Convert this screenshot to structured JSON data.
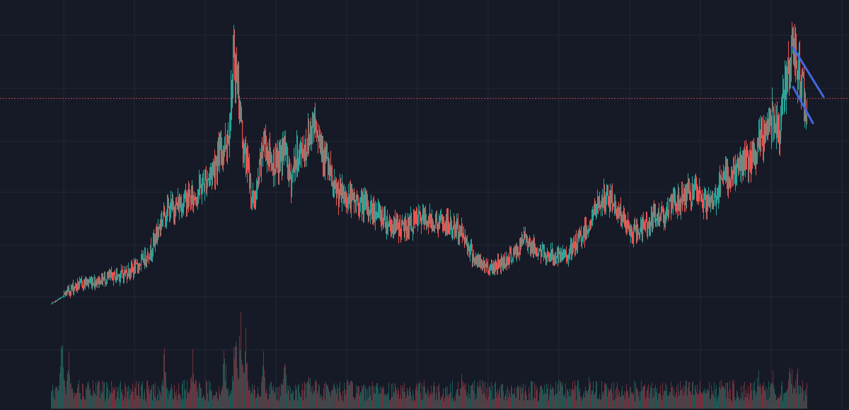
{
  "chart_data": {
    "type": "candlestick",
    "title": "",
    "xlabel": "",
    "ylabel": "",
    "grid": true,
    "y_scale": "linear",
    "ylim": [
      0,
      100
    ],
    "volume_panel": true,
    "reference_line": {
      "value": 76.5,
      "style": "dotted",
      "color": "#c0485a"
    },
    "trendlines": [
      {
        "name": "",
        "points": [
          [
            1049,
            92
          ],
          [
            1092,
            77
          ]
        ],
        "color": "#4169e1"
      },
      {
        "name": "",
        "points": [
          [
            1049,
            80
          ],
          [
            1077,
            69
          ]
        ],
        "color": "#4169e1"
      }
    ],
    "anchors": [
      [
        0,
        14
      ],
      [
        18,
        16.5
      ],
      [
        25,
        18
      ],
      [
        30,
        19
      ],
      [
        48,
        20.5
      ],
      [
        65,
        21
      ],
      [
        80,
        22
      ],
      [
        100,
        23
      ],
      [
        120,
        25
      ],
      [
        140,
        30
      ],
      [
        160,
        42
      ],
      [
        180,
        44
      ],
      [
        190,
        46
      ],
      [
        200,
        46
      ],
      [
        220,
        52
      ],
      [
        235,
        58
      ],
      [
        250,
        65
      ],
      [
        258,
        88
      ],
      [
        262,
        84
      ],
      [
        266,
        75
      ],
      [
        272,
        60
      ],
      [
        278,
        56
      ],
      [
        284,
        45
      ],
      [
        290,
        47
      ],
      [
        300,
        64
      ],
      [
        310,
        58
      ],
      [
        320,
        56
      ],
      [
        330,
        62
      ],
      [
        338,
        51
      ],
      [
        345,
        58
      ],
      [
        360,
        62
      ],
      [
        366,
        66
      ],
      [
        372,
        71
      ],
      [
        378,
        66
      ],
      [
        388,
        58
      ],
      [
        400,
        48
      ],
      [
        420,
        46
      ],
      [
        440,
        44
      ],
      [
        460,
        42
      ],
      [
        480,
        38
      ],
      [
        500,
        37
      ],
      [
        520,
        40
      ],
      [
        540,
        39
      ],
      [
        560,
        38
      ],
      [
        580,
        36
      ],
      [
        600,
        27
      ],
      [
        620,
        25
      ],
      [
        640,
        27
      ],
      [
        660,
        30
      ],
      [
        670,
        35
      ],
      [
        680,
        31
      ],
      [
        700,
        29
      ],
      [
        720,
        28
      ],
      [
        735,
        30
      ],
      [
        760,
        38
      ],
      [
        775,
        45
      ],
      [
        790,
        46
      ],
      [
        800,
        43
      ],
      [
        820,
        35
      ],
      [
        840,
        38
      ],
      [
        860,
        41
      ],
      [
        880,
        44
      ],
      [
        900,
        48
      ],
      [
        920,
        46
      ],
      [
        930,
        44
      ],
      [
        940,
        47
      ],
      [
        950,
        52
      ],
      [
        960,
        53
      ],
      [
        970,
        55
      ],
      [
        980,
        58
      ],
      [
        990,
        56
      ],
      [
        1000,
        62
      ],
      [
        1010,
        67
      ],
      [
        1020,
        72
      ],
      [
        1030,
        68
      ],
      [
        1040,
        85
      ],
      [
        1049,
        90
      ],
      [
        1055,
        86
      ],
      [
        1060,
        82
      ],
      [
        1068,
        72
      ]
    ],
    "volume_spikes": [
      [
        15,
        70
      ],
      [
        25,
        45
      ],
      [
        160,
        55
      ],
      [
        200,
        50
      ],
      [
        245,
        58
      ],
      [
        260,
        80
      ],
      [
        268,
        100
      ],
      [
        275,
        64
      ],
      [
        300,
        45
      ],
      [
        330,
        48
      ],
      [
        365,
        35
      ],
      [
        400,
        28
      ],
      [
        460,
        26
      ],
      [
        520,
        22
      ],
      [
        580,
        28
      ],
      [
        620,
        18
      ],
      [
        700,
        20
      ],
      [
        760,
        25
      ],
      [
        820,
        20
      ],
      [
        870,
        18
      ],
      [
        950,
        30
      ],
      [
        1000,
        40
      ],
      [
        1020,
        32
      ],
      [
        1045,
        50
      ],
      [
        1055,
        38
      ]
    ],
    "up_color": "#26a69a",
    "down_color": "#ef5350"
  }
}
